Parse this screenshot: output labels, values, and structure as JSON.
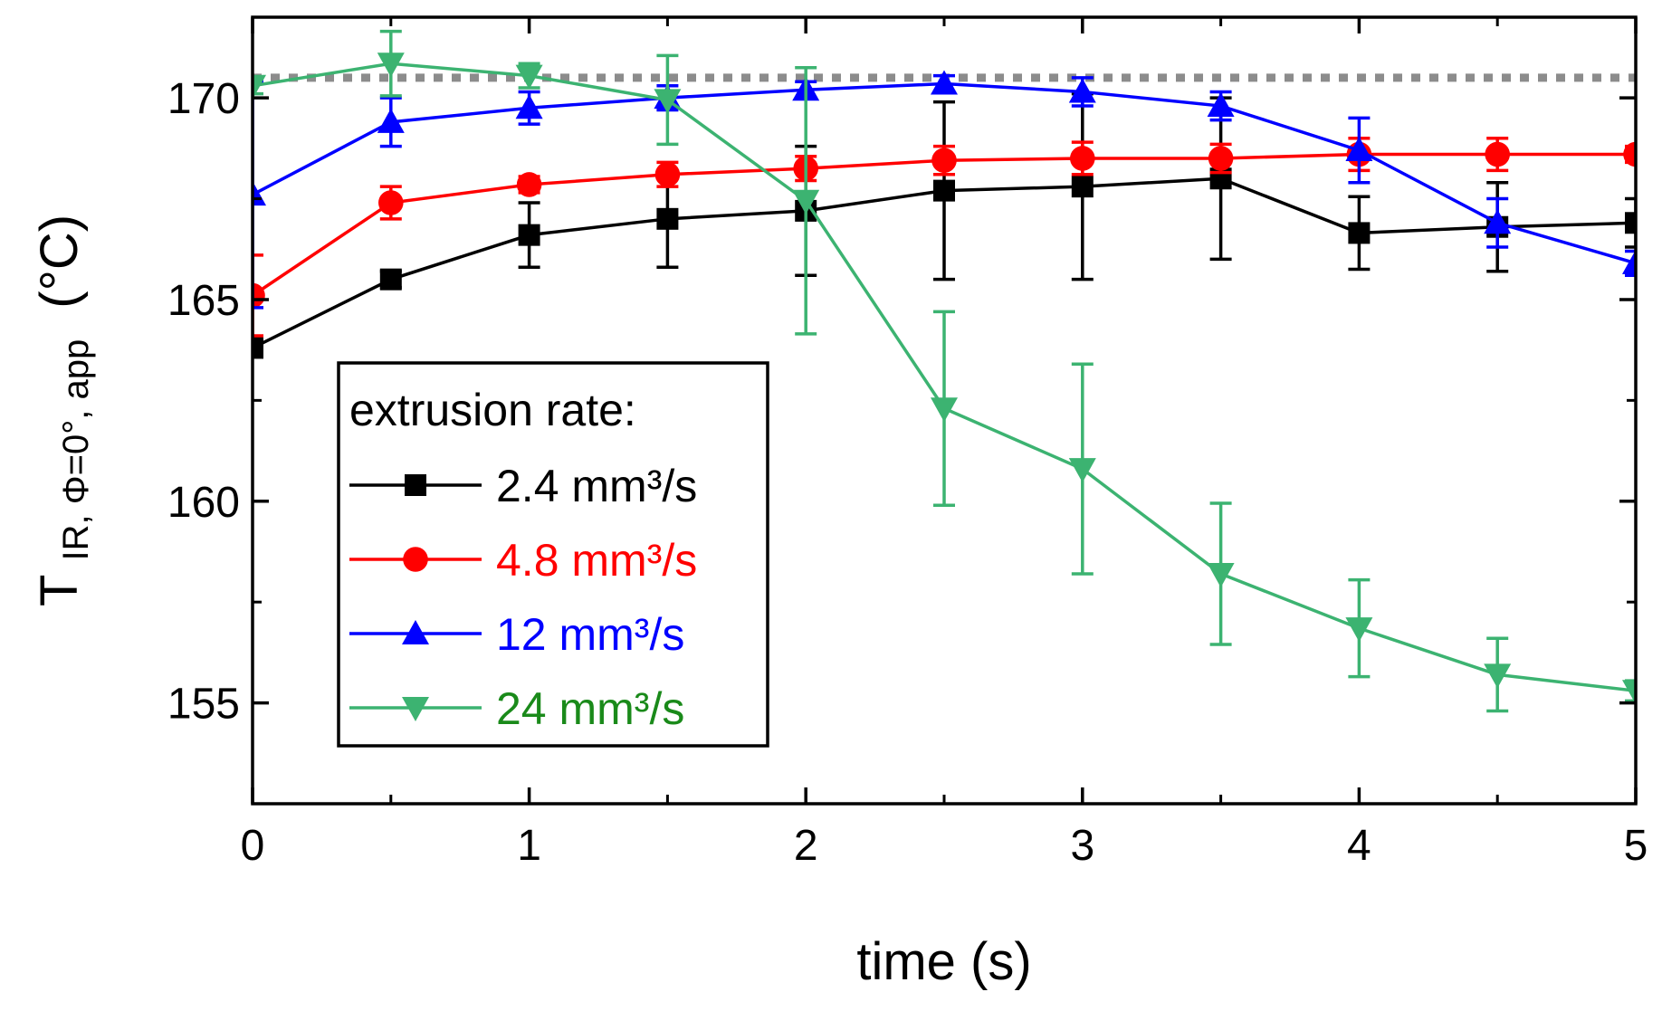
{
  "chart_data": {
    "type": "line",
    "title": "",
    "xlabel": "time (s)",
    "ylabel_main": "T",
    "ylabel_sub": "IR, Φ=0°, app",
    "ylabel_unit": "(°C)",
    "xlim": [
      0,
      5
    ],
    "ylim": [
      152.5,
      172
    ],
    "xticks": [
      0,
      1,
      2,
      3,
      4,
      5
    ],
    "xtick_labels": [
      "0",
      "1",
      "2",
      "3",
      "4",
      "5"
    ],
    "yticks": [
      155,
      160,
      165,
      170
    ],
    "ytick_labels": [
      "155",
      "160",
      "165",
      "170"
    ],
    "reference_line": {
      "y": 170.5,
      "style": "dotted",
      "color": "#8c8c8c"
    },
    "legend": {
      "title": "extrusion rate:",
      "position": "center-left"
    },
    "x": [
      0,
      0.5,
      1,
      1.5,
      2,
      2.5,
      3,
      3.5,
      4,
      4.5,
      5
    ],
    "series": [
      {
        "name": "2.4 mm³/s",
        "color": "#000000",
        "marker": "square",
        "values": [
          163.8,
          165.5,
          166.6,
          167.0,
          167.2,
          167.7,
          167.8,
          168.0,
          166.65,
          166.8,
          166.9
        ],
        "errors": [
          0.2,
          0.2,
          0.8,
          1.2,
          1.6,
          2.2,
          2.3,
          2.0,
          0.9,
          1.1,
          0.6
        ]
      },
      {
        "name": "4.8 mm³/s",
        "color": "#ff0000",
        "marker": "circle",
        "values": [
          165.1,
          167.4,
          167.85,
          168.1,
          168.25,
          168.45,
          168.5,
          168.5,
          168.6,
          168.6,
          168.6
        ],
        "errors": [
          1.0,
          0.4,
          0.2,
          0.3,
          0.3,
          0.35,
          0.4,
          0.35,
          0.4,
          0.4,
          0.2
        ]
      },
      {
        "name": "12 mm³/s",
        "color": "#0000ff",
        "marker": "triangle-up",
        "values": [
          167.6,
          169.4,
          169.75,
          170.0,
          170.2,
          170.35,
          170.15,
          169.8,
          168.7,
          166.9,
          165.9
        ],
        "errors": [
          2.8,
          0.6,
          0.4,
          0.3,
          0.2,
          0.2,
          0.35,
          0.35,
          0.8,
          0.6,
          0.3
        ]
      },
      {
        "name": "24 mm³/s",
        "color": "#3cb371",
        "text_color": "#1a8a1a",
        "marker": "triangle-down",
        "values": [
          170.3,
          170.85,
          170.55,
          169.95,
          167.45,
          162.3,
          160.8,
          158.2,
          156.85,
          155.7,
          155.3
        ],
        "errors": [
          0.2,
          0.8,
          0.3,
          1.1,
          3.3,
          2.4,
          2.6,
          1.75,
          1.2,
          0.9,
          0.25
        ]
      }
    ]
  }
}
